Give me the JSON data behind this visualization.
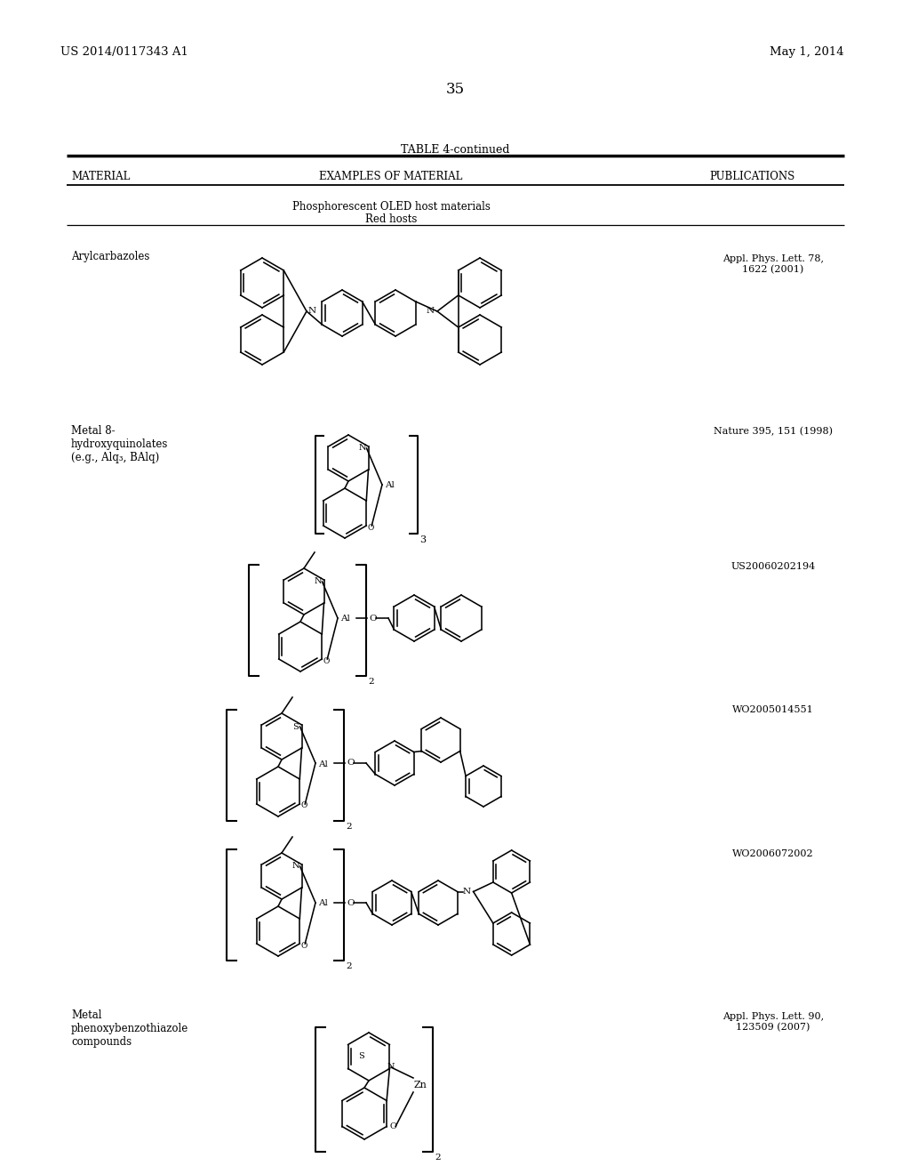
{
  "page_number": "35",
  "patent_number": "US 2014/0117343 A1",
  "patent_date": "May 1, 2014",
  "table_title": "TABLE 4-continued",
  "col1_header": "MATERIAL",
  "col2_header": "EXAMPLES OF MATERIAL",
  "col3_header": "PUBLICATIONS",
  "section_line1": "Phosphorescent OLED host materials",
  "section_line2": "Red hosts",
  "row1_material": "Arylcarbazoles",
  "row1_pub": "Appl. Phys. Lett. 78,\n1622 (2001)",
  "row2_material": "Metal 8-\nhydroxyquinolates\n(e.g., Alq₃, BAlq)",
  "row2_pub": "Nature 395, 151 (1998)",
  "row3_pub": "US20060202194",
  "row4_pub": "WO2005014551",
  "row5_pub": "WO2006072002",
  "row6_material": "Metal\nphenoxybenzothiazole\ncompounds",
  "row6_pub": "Appl. Phys. Lett. 90,\n123509 (2007)",
  "bg_color": "#ffffff",
  "text_color": "#000000"
}
